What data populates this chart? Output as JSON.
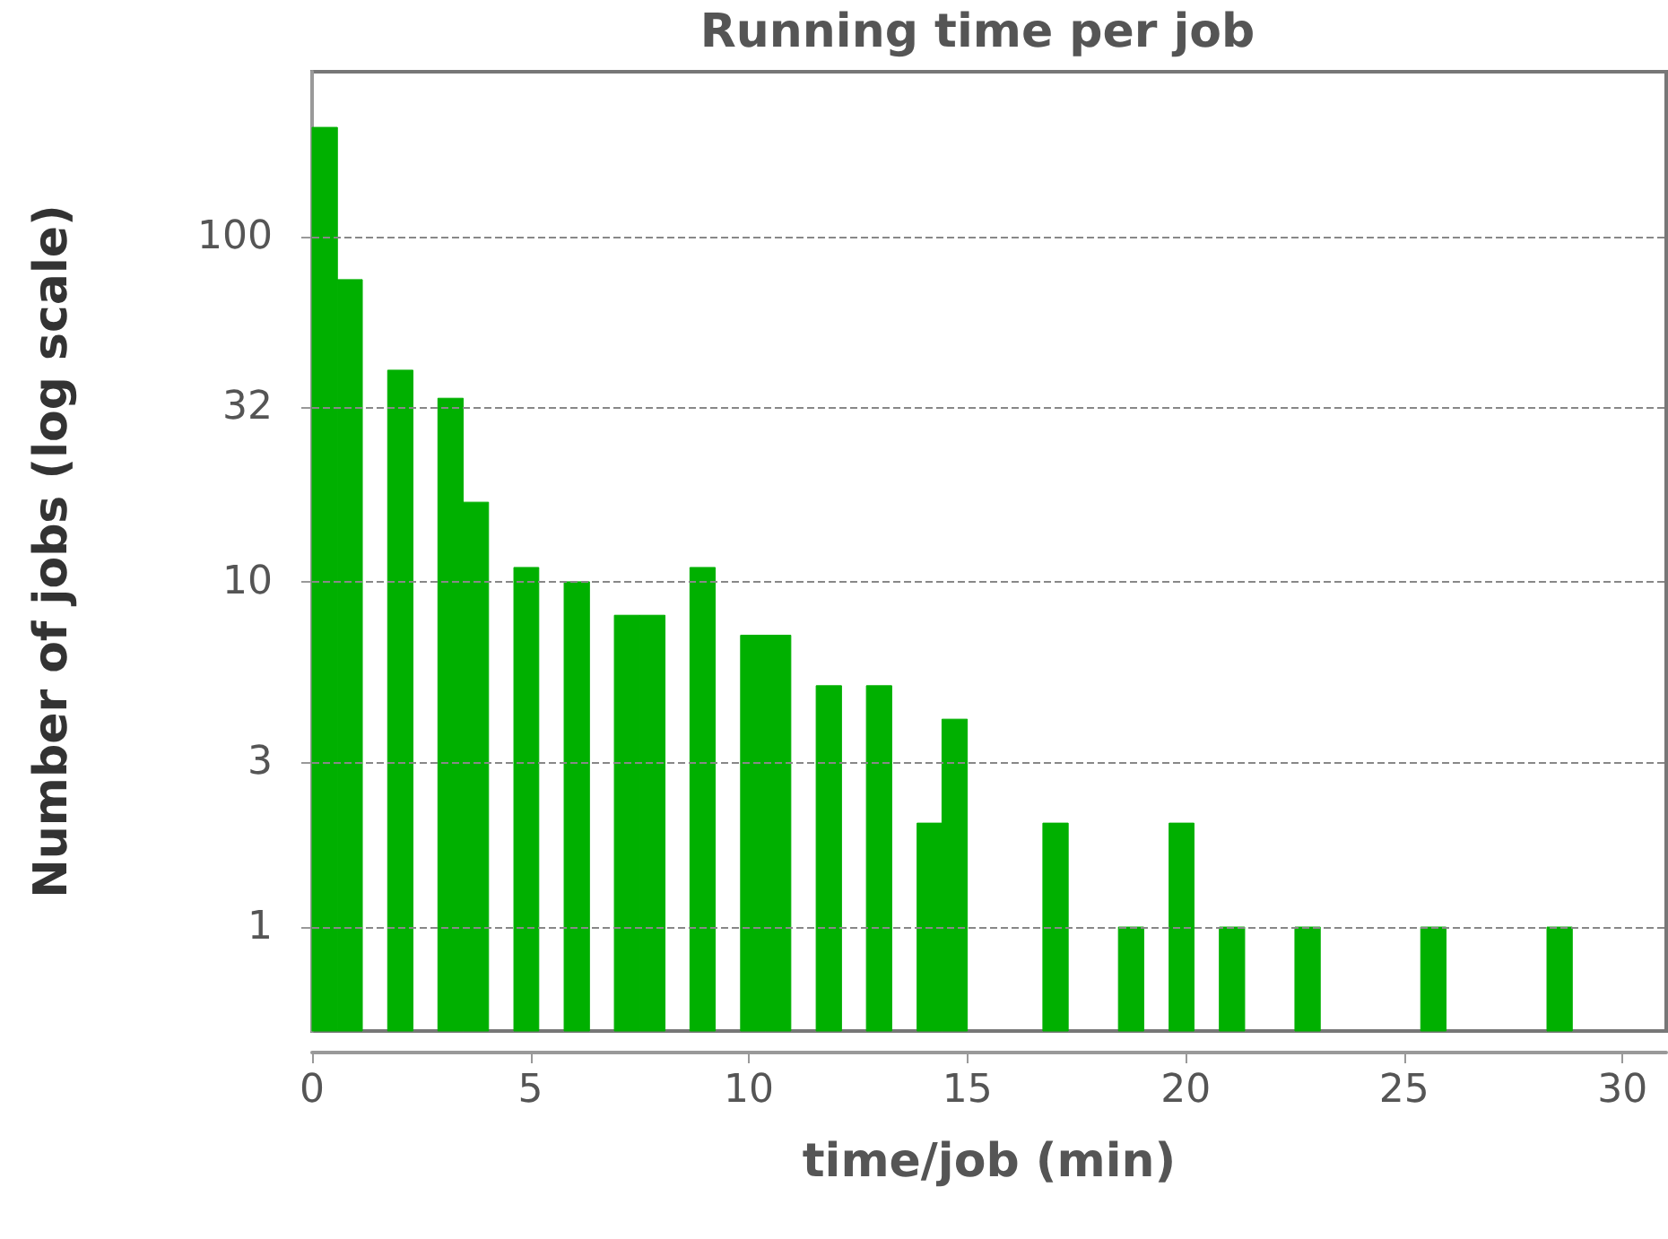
{
  "chart_data": {
    "type": "histogram",
    "title": "Running time per job",
    "xlabel": "time/job (min)",
    "ylabel": "Number of jobs (log scale)",
    "bins": [
      0,
      0.58,
      1.15,
      1.73,
      2.31,
      2.88,
      3.46,
      4.04,
      4.62,
      5.19,
      5.77,
      6.35,
      6.92,
      7.5,
      8.08,
      8.65,
      9.23,
      9.81,
      10.38,
      10.96,
      11.54,
      12.12,
      12.69,
      13.27,
      13.85,
      14.42,
      15,
      15.58,
      16.15,
      16.73,
      17.31,
      17.88,
      18.46,
      19.04,
      19.62,
      20.19,
      20.77,
      21.35,
      21.92,
      22.5,
      23.08,
      23.65,
      24.23,
      24.81,
      25.38,
      25.96,
      26.54,
      27.12,
      27.69,
      28.27,
      28.85
    ],
    "values": [
      207,
      75,
      null,
      41,
      null,
      34,
      17,
      null,
      11,
      null,
      10,
      null,
      8,
      8,
      null,
      11,
      null,
      7,
      7,
      null,
      5,
      null,
      5,
      null,
      2,
      4,
      null,
      null,
      null,
      2,
      null,
      null,
      1,
      null,
      2,
      null,
      1,
      null,
      null,
      1,
      null,
      null,
      null,
      null,
      1,
      null,
      null,
      null,
      null,
      1
    ],
    "color": "#00b000",
    "xlim": [
      0,
      31
    ],
    "xticks": [
      0,
      5,
      10,
      15,
      20,
      25,
      30
    ],
    "ylim": [
      0.5,
      300
    ],
    "yticks": [
      1,
      3,
      10,
      32,
      100
    ],
    "log": "y",
    "grid": "y"
  }
}
